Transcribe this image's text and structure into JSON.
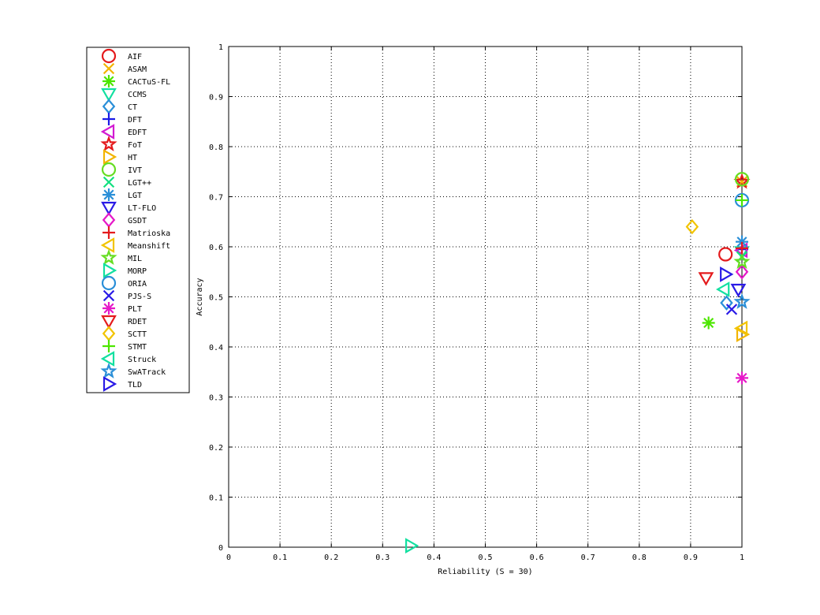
{
  "chart_data": {
    "type": "scatter",
    "title": "",
    "xlabel": "Reliability (S = 30)",
    "ylabel": "Accuracy",
    "xlim": [
      0,
      1
    ],
    "ylim": [
      0,
      1
    ],
    "xticks": [
      "0",
      "0.1",
      "0.2",
      "0.3",
      "0.4",
      "0.5",
      "0.6",
      "0.7",
      "0.8",
      "0.9",
      "1"
    ],
    "yticks": [
      "0",
      "0.1",
      "0.2",
      "0.3",
      "0.4",
      "0.5",
      "0.6",
      "0.7",
      "0.8",
      "0.9",
      "1"
    ],
    "grid": true,
    "legend_position": "outside-left",
    "series": [
      {
        "name": "AIF",
        "marker": "circle",
        "color": "#e41a1c",
        "x": 0.968,
        "y": 0.585
      },
      {
        "name": "ASAM",
        "marker": "x",
        "color": "#f2b400",
        "x": 1.0,
        "y": 0.73
      },
      {
        "name": "CACTuS-FL",
        "marker": "asterisk",
        "color": "#4ce600",
        "x": 0.935,
        "y": 0.448
      },
      {
        "name": "CCMS",
        "marker": "triangle-down",
        "color": "#12e0a0",
        "x": 1.0,
        "y": 0.59
      },
      {
        "name": "CT",
        "marker": "diamond",
        "color": "#2a8fd8",
        "x": 0.97,
        "y": 0.488
      },
      {
        "name": "DFT",
        "marker": "plus",
        "color": "#1a1ae6",
        "x": 1.0,
        "y": 0.595
      },
      {
        "name": "EDFT",
        "marker": "triangle-left",
        "color": "#d21ad2",
        "x": 1.0,
        "y": 0.593
      },
      {
        "name": "FoT",
        "marker": "star",
        "color": "#e41a1c",
        "x": 1.0,
        "y": 0.73
      },
      {
        "name": "HT",
        "marker": "triangle-right",
        "color": "#f2b400",
        "x": 1.0,
        "y": 0.425
      },
      {
        "name": "IVT",
        "marker": "circle",
        "color": "#66dd22",
        "x": 1.0,
        "y": 0.735
      },
      {
        "name": "LGT++",
        "marker": "x",
        "color": "#12e080",
        "x": 1.0,
        "y": 0.58
      },
      {
        "name": "LGT",
        "marker": "asterisk",
        "color": "#2a8fd8",
        "x": 1.0,
        "y": 0.61
      },
      {
        "name": "LT-FLO",
        "marker": "triangle-down",
        "color": "#2a1ae6",
        "x": 0.993,
        "y": 0.515
      },
      {
        "name": "GSDT",
        "marker": "diamond",
        "color": "#e619c8",
        "x": 1.0,
        "y": 0.55
      },
      {
        "name": "Matrioska",
        "marker": "plus",
        "color": "#e41a1c",
        "x": 1.0,
        "y": 0.597
      },
      {
        "name": "Meanshift",
        "marker": "triangle-left",
        "color": "#f2c400",
        "x": 1.0,
        "y": 0.437
      },
      {
        "name": "MIL",
        "marker": "star",
        "color": "#66dd22",
        "x": 1.0,
        "y": 0.57
      },
      {
        "name": "MORP",
        "marker": "triangle-right",
        "color": "#12e0a0",
        "x": 0.355,
        "y": 0.003
      },
      {
        "name": "ORIA",
        "marker": "circle",
        "color": "#2a8fd8",
        "x": 1.0,
        "y": 0.693
      },
      {
        "name": "PJS-S",
        "marker": "x",
        "color": "#2a1ae6",
        "x": 0.98,
        "y": 0.475
      },
      {
        "name": "PLT",
        "marker": "asterisk",
        "color": "#e619c8",
        "x": 1.0,
        "y": 0.338
      },
      {
        "name": "RDET",
        "marker": "triangle-down",
        "color": "#e41a1c",
        "x": 0.93,
        "y": 0.538
      },
      {
        "name": "SCTT",
        "marker": "diamond",
        "color": "#f2c400",
        "x": 0.903,
        "y": 0.64
      },
      {
        "name": "STMT",
        "marker": "plus",
        "color": "#4ce600",
        "x": 1.0,
        "y": 0.693
      },
      {
        "name": "Struck",
        "marker": "triangle-left",
        "color": "#12e0a0",
        "x": 0.965,
        "y": 0.515
      },
      {
        "name": "SwATrack",
        "marker": "star",
        "color": "#2a8fd8",
        "x": 1.0,
        "y": 0.49
      },
      {
        "name": "TLD",
        "marker": "triangle-right",
        "color": "#2a1ae6",
        "x": 0.968,
        "y": 0.545
      }
    ]
  }
}
